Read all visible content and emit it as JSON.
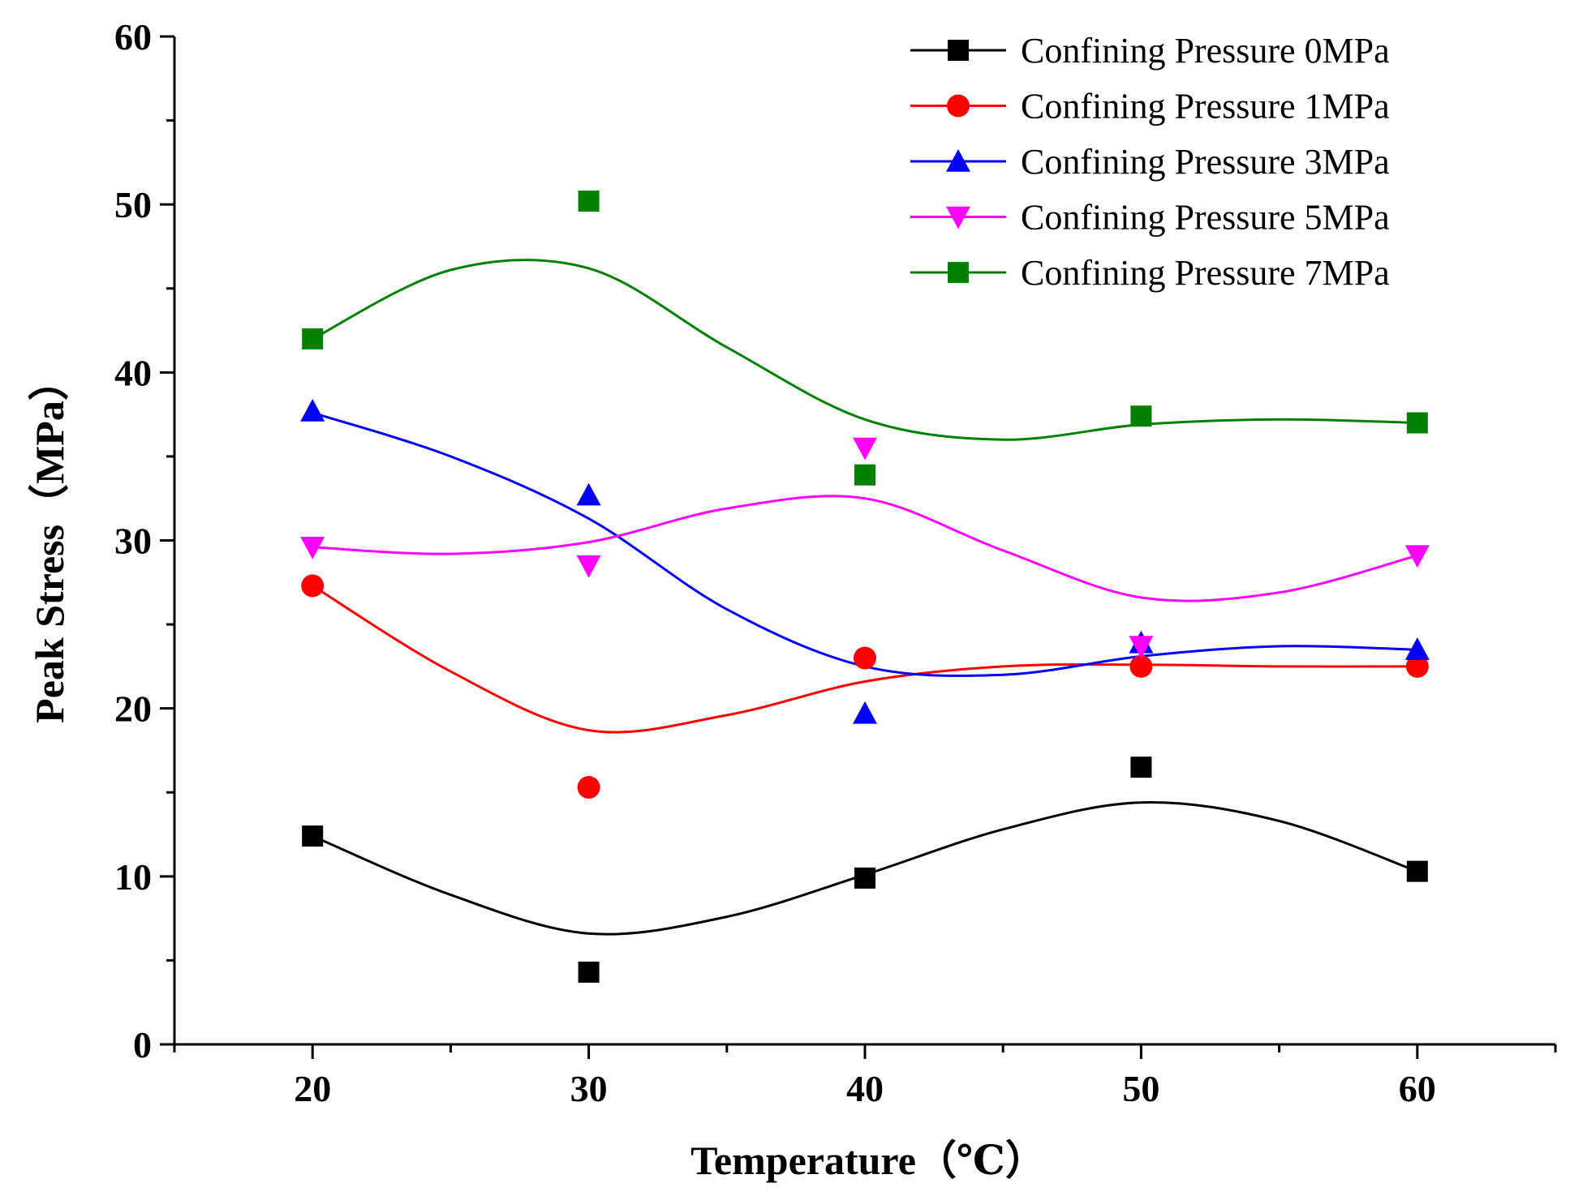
{
  "chart_data": {
    "type": "scatter",
    "title": "",
    "xlabel": "Temperature（℃）",
    "ylabel": "Peak Stress（MPa）",
    "xlim": [
      15,
      65
    ],
    "ylim": [
      0,
      60
    ],
    "x_ticks": [
      20,
      30,
      40,
      50,
      60
    ],
    "x_tick_labels": [
      "20",
      "30",
      "40",
      "50",
      "60"
    ],
    "y_ticks": [
      0,
      10,
      20,
      30,
      40,
      50,
      60
    ],
    "y_tick_labels": [
      "0",
      "10",
      "20",
      "30",
      "40",
      "50",
      "60"
    ],
    "x": [
      20,
      30,
      40,
      50,
      60
    ],
    "legend_position": "top-right",
    "series": [
      {
        "name": "Confining Pressure 0MPa",
        "color": "#000000",
        "marker": "square",
        "values": [
          12.4,
          4.3,
          9.9,
          16.5,
          10.3
        ],
        "curve": [
          [
            20,
            12.4
          ],
          [
            25,
            8.9
          ],
          [
            30,
            6.6
          ],
          [
            35,
            7.6
          ],
          [
            40,
            10.1
          ],
          [
            45,
            12.8
          ],
          [
            50,
            14.4
          ],
          [
            55,
            13.3
          ],
          [
            60,
            10.3
          ]
        ]
      },
      {
        "name": "Confining Pressure 1MPa",
        "color": "#ff0000",
        "marker": "circle",
        "values": [
          27.3,
          15.3,
          23.0,
          22.5,
          22.5
        ],
        "curve": [
          [
            20,
            27.3
          ],
          [
            25,
            22.2
          ],
          [
            30,
            18.7
          ],
          [
            35,
            19.6
          ],
          [
            40,
            21.6
          ],
          [
            45,
            22.5
          ],
          [
            50,
            22.6
          ],
          [
            55,
            22.5
          ],
          [
            60,
            22.5
          ]
        ]
      },
      {
        "name": "Confining Pressure 3MPa",
        "color": "#0000ff",
        "marker": "triangle-up",
        "values": [
          37.7,
          32.7,
          19.7,
          23.9,
          23.5
        ],
        "curve": [
          [
            20,
            37.6
          ],
          [
            25,
            35.0
          ],
          [
            30,
            31.3
          ],
          [
            35,
            25.9
          ],
          [
            40,
            22.5
          ],
          [
            45,
            22.0
          ],
          [
            50,
            23.1
          ],
          [
            55,
            23.7
          ],
          [
            60,
            23.5
          ]
        ]
      },
      {
        "name": "Confining Pressure 5MPa",
        "color": "#ff00ff",
        "marker": "triangle-down",
        "values": [
          29.6,
          28.5,
          35.5,
          23.7,
          29.1
        ],
        "curve": [
          [
            20,
            29.6
          ],
          [
            25,
            29.2
          ],
          [
            30,
            29.9
          ],
          [
            35,
            31.9
          ],
          [
            40,
            32.5
          ],
          [
            45,
            29.4
          ],
          [
            50,
            26.6
          ],
          [
            55,
            26.9
          ],
          [
            60,
            29.1
          ]
        ]
      },
      {
        "name": "Confining Pressure 7MPa",
        "color": "#008000",
        "marker": "square",
        "values": [
          42.0,
          50.2,
          33.9,
          37.4,
          37.0
        ],
        "curve": [
          [
            20,
            42.0
          ],
          [
            25,
            46.1
          ],
          [
            30,
            46.2
          ],
          [
            35,
            41.5
          ],
          [
            40,
            37.2
          ],
          [
            45,
            36.0
          ],
          [
            50,
            36.9
          ],
          [
            55,
            37.2
          ],
          [
            60,
            37.0
          ]
        ]
      }
    ]
  }
}
